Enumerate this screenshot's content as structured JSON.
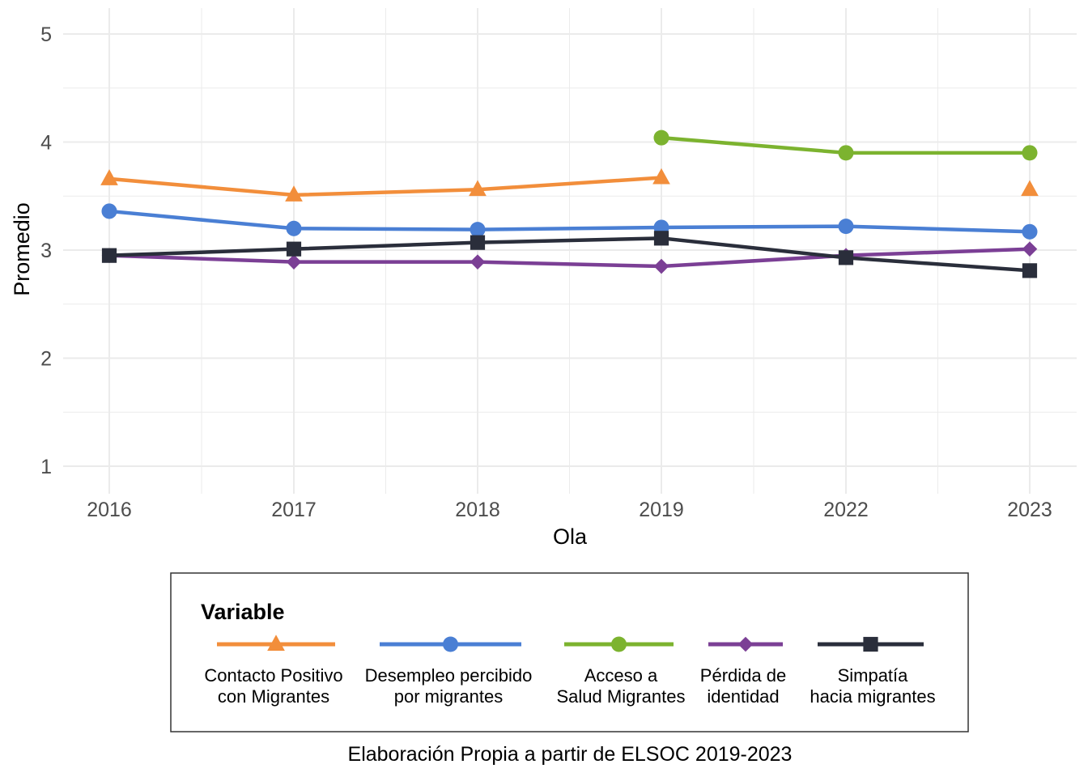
{
  "chart_data": {
    "type": "line",
    "x": [
      "2016",
      "2017",
      "2018",
      "2019",
      "2022",
      "2023"
    ],
    "xlabel": "Ola",
    "ylabel": "Promedio",
    "ylim": [
      1,
      5
    ],
    "yticks": [
      "1",
      "2",
      "3",
      "4",
      "5"
    ],
    "grid": true,
    "legend": {
      "title": "Variable",
      "placement": "bottom"
    },
    "caption": "Elaboración Propia a partir de ELSOC 2019-2023",
    "series": [
      {
        "name": "Contacto Positivo con Migrantes",
        "label_lines": [
          "Contacto Positivo",
          "con Migrantes"
        ],
        "color": "#F28E3B",
        "marker": "triangle",
        "values": [
          3.66,
          3.51,
          3.56,
          3.67,
          null,
          3.56
        ]
      },
      {
        "name": "Desempleo percibido por migrantes",
        "label_lines": [
          "Desempleo percibido",
          "por migrantes"
        ],
        "color": "#4A7FD4",
        "marker": "circle",
        "values": [
          3.36,
          3.2,
          3.19,
          3.21,
          3.22,
          3.17
        ]
      },
      {
        "name": "Acceso a Salud Migrantes",
        "label_lines": [
          "Acceso a",
          "Salud Migrantes"
        ],
        "color": "#7CB32F",
        "marker": "circle",
        "values": [
          null,
          null,
          null,
          4.04,
          3.9,
          3.9
        ]
      },
      {
        "name": "Pérdida de identidad",
        "label_lines": [
          "Pérdida de",
          "identidad"
        ],
        "color": "#7B3F95",
        "marker": "diamond",
        "values": [
          2.95,
          2.89,
          2.89,
          2.85,
          2.95,
          3.01
        ]
      },
      {
        "name": "Simpatía hacia migrantes",
        "label_lines": [
          "Simpatía",
          "hacia migrantes"
        ],
        "color": "#2A2E3B",
        "marker": "square",
        "values": [
          2.95,
          3.01,
          3.07,
          3.11,
          2.93,
          2.81
        ]
      }
    ]
  }
}
